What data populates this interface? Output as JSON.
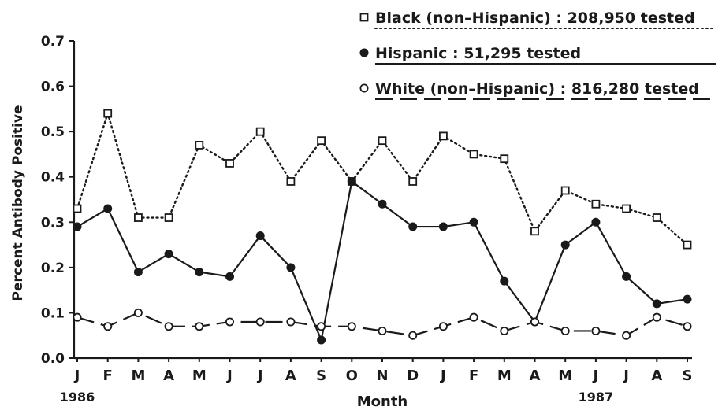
{
  "chart_data": {
    "type": "line",
    "title": "",
    "xlabel": "Month",
    "ylabel": "Percent Antibody Positive",
    "ylim": [
      0.0,
      0.7
    ],
    "yticks": [
      "0.0",
      "0.1",
      "0.2",
      "0.3",
      "0.4",
      "0.5",
      "0.6",
      "0.7"
    ],
    "categories": [
      "J",
      "F",
      "M",
      "A",
      "M",
      "J",
      "J",
      "A",
      "S",
      "O",
      "N",
      "D",
      "J",
      "F",
      "M",
      "A",
      "M",
      "J",
      "J",
      "A",
      "S"
    ],
    "year_labels": [
      {
        "text": "1986",
        "category_index": 0
      },
      {
        "text": "1987",
        "category_index": 17
      }
    ],
    "grid": false,
    "legend_position": "top-right",
    "series": [
      {
        "name": "Black (non–Hispanic) : 208,950 tested",
        "marker": "square",
        "line_style": "dotted",
        "values": [
          0.33,
          0.54,
          0.31,
          0.31,
          0.47,
          0.43,
          0.5,
          0.39,
          0.48,
          0.39,
          0.48,
          0.39,
          0.49,
          0.45,
          0.44,
          0.28,
          0.37,
          0.34,
          0.33,
          0.31,
          0.25
        ]
      },
      {
        "name": "Hispanic : 51,295 tested",
        "marker": "filled-circle",
        "line_style": "solid",
        "values": [
          0.29,
          0.33,
          0.19,
          0.23,
          0.19,
          0.18,
          0.27,
          0.2,
          0.04,
          0.39,
          0.34,
          0.29,
          0.29,
          0.3,
          0.17,
          0.08,
          0.25,
          0.3,
          0.18,
          0.12,
          0.13
        ]
      },
      {
        "name": "White (non–Hispanic) : 816,280 tested",
        "marker": "open-circle",
        "line_style": "dashed",
        "values": [
          0.09,
          0.07,
          0.1,
          0.07,
          0.07,
          0.08,
          0.08,
          0.08,
          0.07,
          0.07,
          0.06,
          0.05,
          0.07,
          0.09,
          0.06,
          0.08,
          0.06,
          0.06,
          0.05,
          0.09,
          0.07
        ]
      }
    ]
  }
}
